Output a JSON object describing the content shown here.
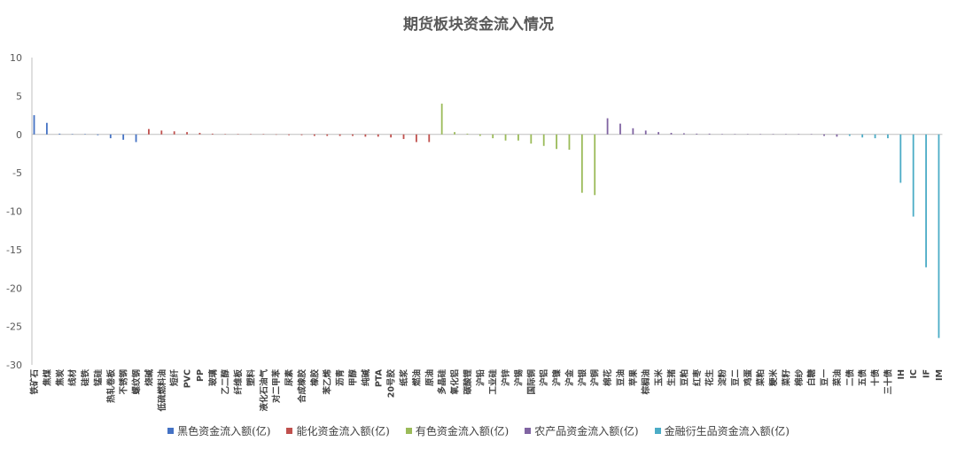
{
  "chart_data": {
    "type": "bar",
    "title": "期货板块资金流入情况",
    "ylim": [
      -30,
      10
    ],
    "yticks": [
      10,
      5,
      0,
      -5,
      -10,
      -15,
      -20,
      -25,
      -30
    ],
    "grid": false,
    "legend_position": "bottom",
    "series": [
      {
        "name": "黑色资金流入额(亿)",
        "color": "#4472C4"
      },
      {
        "name": "能化资金流入额(亿)",
        "color": "#C0504D"
      },
      {
        "name": "有色资金流入额(亿)",
        "color": "#9BBB59"
      },
      {
        "name": "农产品资金流入额(亿)",
        "color": "#8064A2"
      },
      {
        "name": "金融衍生品资金流入额(亿)",
        "color": "#4BACC6"
      }
    ],
    "categories": [
      "铁矿石",
      "焦煤",
      "焦炭",
      "线材",
      "硅铁",
      "锰硅",
      "热轧卷板",
      "不锈钢",
      "螺纹钢",
      "烧碱",
      "低硫燃料油",
      "短纤",
      "PVC",
      "PP",
      "玻璃",
      "乙二醇",
      "纤维板",
      "塑料",
      "液化石油气",
      "对二甲苯",
      "尿素",
      "合成橡胶",
      "橡胶",
      "苯乙烯",
      "沥青",
      "甲醇",
      "纯碱",
      "PTA",
      "20号胶",
      "纸浆",
      "燃油",
      "原油",
      "多晶硅",
      "氧化铝",
      "碳酸锂",
      "沪铅",
      "工业硅",
      "沪锌",
      "沪锡",
      "国际铜",
      "沪铝",
      "沪镍",
      "沪金",
      "沪银",
      "沪铜",
      "棉花",
      "豆油",
      "苹果",
      "棕榈油",
      "玉米",
      "生猪",
      "豆粕",
      "红枣",
      "花生",
      "淀粉",
      "豆二",
      "鸡蛋",
      "菜粕",
      "粳米",
      "菜籽",
      "棉纱",
      "白糖",
      "豆一",
      "菜油",
      "二债",
      "五债",
      "十债",
      "三十债",
      "IH",
      "IC",
      "IF",
      "IM"
    ],
    "series_index": [
      0,
      0,
      0,
      0,
      0,
      0,
      0,
      0,
      0,
      1,
      1,
      1,
      1,
      1,
      1,
      1,
      1,
      1,
      1,
      1,
      1,
      1,
      1,
      1,
      1,
      1,
      1,
      1,
      1,
      1,
      1,
      1,
      2,
      2,
      2,
      2,
      2,
      2,
      2,
      2,
      2,
      2,
      2,
      2,
      2,
      3,
      3,
      3,
      3,
      3,
      3,
      3,
      3,
      3,
      3,
      3,
      3,
      3,
      3,
      3,
      3,
      3,
      3,
      3,
      4,
      4,
      4,
      4,
      4,
      4,
      4,
      4
    ],
    "values": [
      2.5,
      1.5,
      0.1,
      0.05,
      0.05,
      -0.1,
      -0.5,
      -0.7,
      -1.0,
      0.7,
      0.5,
      0.4,
      0.3,
      0.2,
      0.1,
      0.05,
      0.05,
      0.05,
      0.05,
      -0.05,
      -0.1,
      -0.1,
      -0.2,
      -0.2,
      -0.2,
      -0.2,
      -0.3,
      -0.3,
      -0.4,
      -0.6,
      -1.0,
      -1.0,
      4.0,
      0.3,
      0.1,
      -0.2,
      -0.5,
      -0.8,
      -0.8,
      -1.2,
      -1.5,
      -1.9,
      -2.0,
      -7.6,
      -7.9,
      2.1,
      1.4,
      0.8,
      0.5,
      0.3,
      0.2,
      0.15,
      0.1,
      0.1,
      0.05,
      0.05,
      0.05,
      0.05,
      0.05,
      0.05,
      0.05,
      0.05,
      -0.2,
      -0.3,
      -0.2,
      -0.4,
      -0.5,
      -0.5,
      -6.3,
      -10.7,
      -17.3,
      -26.5
    ]
  }
}
